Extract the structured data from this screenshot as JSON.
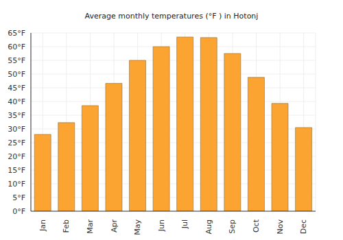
{
  "chart_data": {
    "type": "bar",
    "title": "Average monthly temperatures (°F ) in Hotonj",
    "categories": [
      "Jan",
      "Feb",
      "Mar",
      "Apr",
      "May",
      "Jun",
      "Jul",
      "Aug",
      "Sep",
      "Oct",
      "Nov",
      "Dec"
    ],
    "values": [
      28,
      32.3,
      38.5,
      46.6,
      55,
      60,
      63.5,
      63.3,
      57.5,
      48.8,
      39.3,
      30.5
    ],
    "color": "#fba432",
    "ylim": [
      0,
      65
    ],
    "yticks": [
      {
        "value": 0,
        "label": "0°F"
      },
      {
        "value": 5,
        "label": "5°F"
      },
      {
        "value": 10,
        "label": "10°F"
      },
      {
        "value": 15,
        "label": "15°F"
      },
      {
        "value": 20,
        "label": "20°F"
      },
      {
        "value": 25,
        "label": "25°F"
      },
      {
        "value": 30,
        "label": "30°F"
      },
      {
        "value": 35,
        "label": "35°F"
      },
      {
        "value": 40,
        "label": "40°F"
      },
      {
        "value": 45,
        "label": "45°F"
      },
      {
        "value": 50,
        "label": "50°F"
      },
      {
        "value": 55,
        "label": "55°F"
      },
      {
        "value": 60,
        "label": "60°F"
      },
      {
        "value": 65,
        "label": "65°F"
      }
    ],
    "grid": true
  }
}
